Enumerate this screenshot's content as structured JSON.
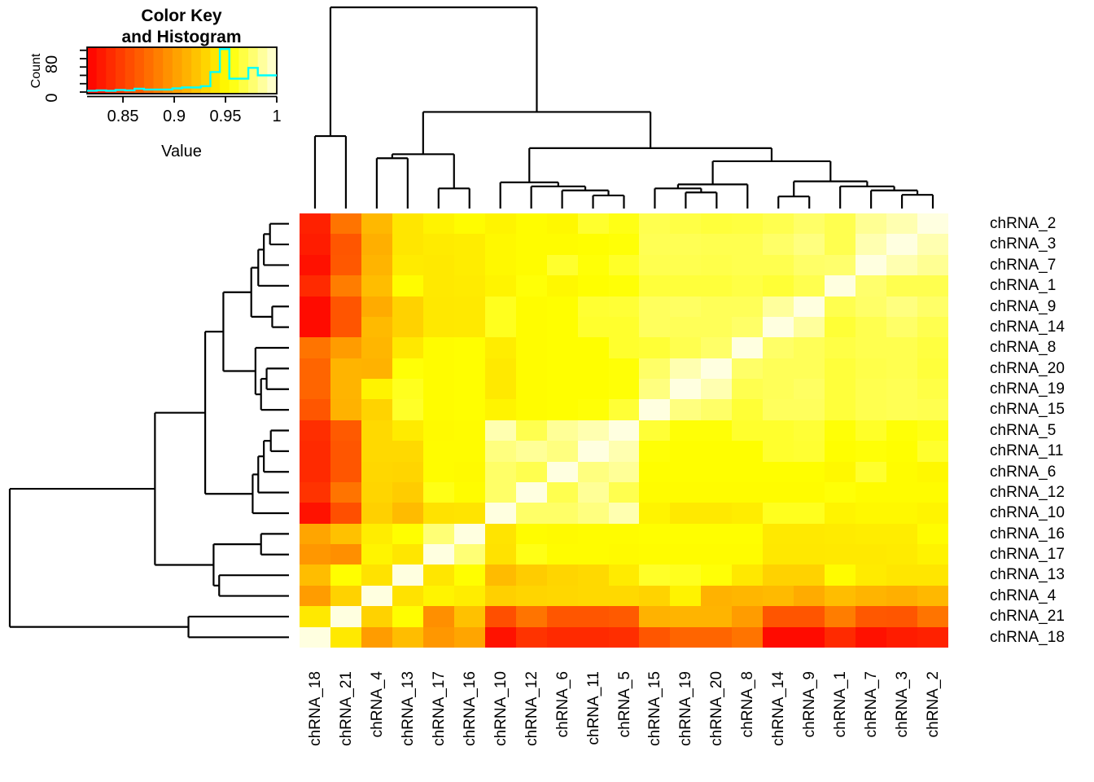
{
  "color_key": {
    "title_line1": "Color Key",
    "title_line2": "and Histogram",
    "xlabel": "Value",
    "ylabel": "Count",
    "x_ticks": [
      0.85,
      0.9,
      0.95,
      1
    ],
    "x_tick_labels": [
      "0.85",
      "0.9",
      "0.95",
      "1"
    ],
    "count_ticks": [
      0,
      20,
      40,
      60,
      80,
      100
    ],
    "count_tick_labels": [
      "0",
      "80"
    ],
    "count_tick_label_values": [
      0,
      80
    ],
    "hist_color": "#00FFFF",
    "hist_counts": [
      3,
      4,
      3,
      5,
      4,
      8,
      6,
      6,
      6,
      9,
      11,
      11,
      14,
      48,
      103,
      32,
      32,
      58,
      40,
      40
    ],
    "gradient_steps": 20
  },
  "chart_data": {
    "type": "heatmap",
    "title": "",
    "value_domain": [
      0.815,
      1.0
    ],
    "palette": "heat-colors-red-yellow-cream",
    "legend_position": "top-left",
    "col_order": [
      "chRNA_18",
      "chRNA_21",
      "chRNA_4",
      "chRNA_13",
      "chRNA_17",
      "chRNA_16",
      "chRNA_10",
      "chRNA_12",
      "chRNA_6",
      "chRNA_11",
      "chRNA_5",
      "chRNA_15",
      "chRNA_19",
      "chRNA_20",
      "chRNA_8",
      "chRNA_14",
      "chRNA_9",
      "chRNA_1",
      "chRNA_7",
      "chRNA_3",
      "chRNA_2"
    ],
    "row_order": [
      "chRNA_2",
      "chRNA_3",
      "chRNA_7",
      "chRNA_1",
      "chRNA_9",
      "chRNA_14",
      "chRNA_8",
      "chRNA_20",
      "chRNA_19",
      "chRNA_15",
      "chRNA_5",
      "chRNA_11",
      "chRNA_6",
      "chRNA_12",
      "chRNA_10",
      "chRNA_16",
      "chRNA_17",
      "chRNA_13",
      "chRNA_4",
      "chRNA_21",
      "chRNA_18"
    ],
    "corr_upper_triangle_in_col_order": [
      [
        1.0,
        0.942,
        0.9,
        0.918,
        0.897,
        0.905,
        0.825,
        0.843,
        0.838,
        0.838,
        0.84,
        0.862,
        0.87,
        0.87,
        0.878,
        0.821,
        0.821,
        0.838,
        0.824,
        0.83,
        0.833
      ],
      [
        1.0,
        0.929,
        0.953,
        0.893,
        0.92,
        0.858,
        0.878,
        0.862,
        0.862,
        0.864,
        0.912,
        0.913,
        0.913,
        0.9,
        0.861,
        0.861,
        0.883,
        0.863,
        0.862,
        0.878
      ],
      [
        1.0,
        0.938,
        0.948,
        0.944,
        0.928,
        0.931,
        0.932,
        0.933,
        0.933,
        0.93,
        0.947,
        0.912,
        0.914,
        0.916,
        0.908,
        0.918,
        0.913,
        0.91,
        0.915
      ],
      [
        1.0,
        0.94,
        0.953,
        0.917,
        0.926,
        0.931,
        0.933,
        0.943,
        0.962,
        0.96,
        0.955,
        0.941,
        0.929,
        0.929,
        0.952,
        0.943,
        0.94,
        0.94
      ],
      [
        1.0,
        0.978,
        0.938,
        0.958,
        0.952,
        0.952,
        0.951,
        0.952,
        0.952,
        0.952,
        0.952,
        0.941,
        0.941,
        0.942,
        0.942,
        0.943,
        0.947
      ],
      [
        1.0,
        0.939,
        0.952,
        0.951,
        0.952,
        0.952,
        0.953,
        0.953,
        0.953,
        0.953,
        0.942,
        0.942,
        0.943,
        0.944,
        0.944,
        0.952
      ],
      [
        1.0,
        0.975,
        0.975,
        0.98,
        0.99,
        0.948,
        0.942,
        0.942,
        0.944,
        0.96,
        0.96,
        0.948,
        0.95,
        0.95,
        0.948
      ],
      [
        1.0,
        0.97,
        0.985,
        0.97,
        0.952,
        0.952,
        0.952,
        0.952,
        0.952,
        0.952,
        0.955,
        0.952,
        0.952,
        0.952
      ],
      [
        1.0,
        0.98,
        0.985,
        0.953,
        0.953,
        0.953,
        0.953,
        0.953,
        0.953,
        0.95,
        0.963,
        0.952,
        0.95
      ],
      [
        1.0,
        0.99,
        0.955,
        0.953,
        0.953,
        0.953,
        0.963,
        0.964,
        0.953,
        0.955,
        0.953,
        0.963
      ],
      [
        1.0,
        0.965,
        0.955,
        0.955,
        0.963,
        0.963,
        0.965,
        0.955,
        0.962,
        0.955,
        0.958
      ],
      [
        1.0,
        0.98,
        0.975,
        0.965,
        0.973,
        0.973,
        0.966,
        0.97,
        0.971,
        0.97
      ],
      [
        1.0,
        0.99,
        0.97,
        0.972,
        0.974,
        0.966,
        0.97,
        0.971,
        0.968
      ],
      [
        1.0,
        0.975,
        0.972,
        0.972,
        0.966,
        0.969,
        0.97,
        0.966
      ],
      [
        1.0,
        0.975,
        0.972,
        0.968,
        0.97,
        0.97,
        0.967
      ],
      [
        1.0,
        0.986,
        0.965,
        0.97,
        0.975,
        0.97
      ],
      [
        1.0,
        0.97,
        0.975,
        0.98,
        0.975
      ],
      [
        1.0,
        0.976,
        0.97,
        0.97
      ],
      [
        1.0,
        0.99,
        0.984
      ],
      [
        1.0,
        0.99
      ],
      [
        1.0
      ]
    ],
    "dendrogram": {
      "h": 1.0,
      "c": [
        {
          "h": 0.36,
          "c": [
            "chRNA_18",
            "chRNA_21"
          ]
        },
        {
          "h": 0.48,
          "c": [
            {
              "h": 0.27,
              "c": [
                {
                  "h": 0.25,
                  "c": [
                    "chRNA_4",
                    "chRNA_13"
                  ]
                },
                {
                  "h": 0.1,
                  "c": [
                    "chRNA_17",
                    "chRNA_16"
                  ]
                }
              ]
            },
            {
              "h": 0.3,
              "c": [
                {
                  "h": 0.13,
                  "c": [
                    "chRNA_10",
                    {
                      "h": 0.11,
                      "c": [
                        "chRNA_12",
                        {
                          "h": 0.09,
                          "c": [
                            "chRNA_6",
                            {
                              "h": 0.065,
                              "c": [
                                "chRNA_11",
                                "chRNA_5"
                              ]
                            }
                          ]
                        }
                      ]
                    }
                  ]
                },
                {
                  "h": 0.235,
                  "c": [
                    {
                      "h": 0.12,
                      "c": [
                        {
                          "h": 0.1,
                          "c": [
                            "chRNA_15",
                            {
                              "h": 0.08,
                              "c": [
                                "chRNA_19",
                                "chRNA_20"
                              ]
                            }
                          ]
                        },
                        "chRNA_8"
                      ]
                    },
                    {
                      "h": 0.135,
                      "c": [
                        {
                          "h": 0.06,
                          "c": [
                            "chRNA_14",
                            "chRNA_9"
                          ]
                        },
                        {
                          "h": 0.11,
                          "c": [
                            "chRNA_1",
                            {
                              "h": 0.09,
                              "c": [
                                "chRNA_7",
                                {
                                  "h": 0.068,
                                  "c": [
                                    "chRNA_3",
                                    "chRNA_2"
                                  ]
                                }
                              ]
                            }
                          ]
                        }
                      ]
                    }
                  ]
                }
              ]
            }
          ]
        }
      ]
    }
  }
}
